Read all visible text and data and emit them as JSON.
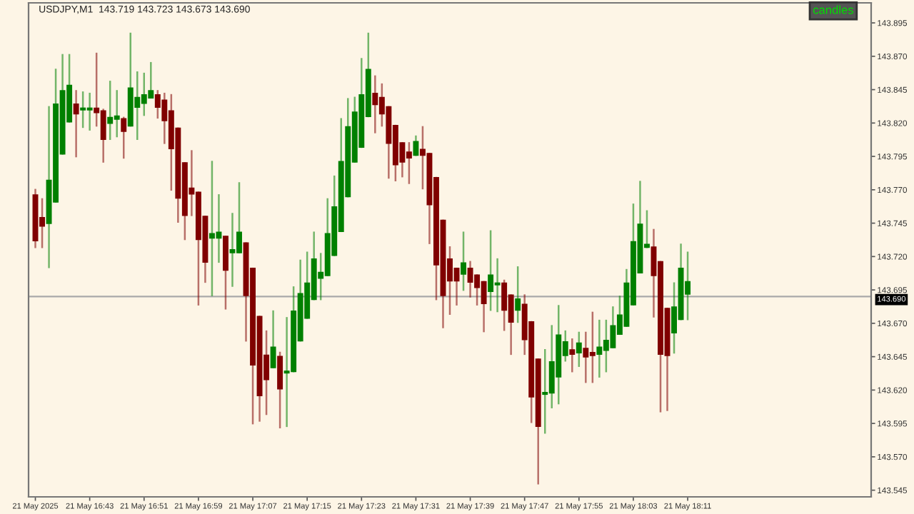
{
  "chart_data": {
    "type": "candlestick",
    "title": "USDJPY,M1  143.719 143.723 143.673 143.690",
    "x": [
      "2025-05-21T16:35",
      "2025-05-21T16:36",
      "2025-05-21T16:37",
      "2025-05-21T16:38",
      "2025-05-21T16:39",
      "2025-05-21T16:40",
      "2025-05-21T16:41",
      "2025-05-21T16:42",
      "2025-05-21T16:43",
      "2025-05-21T16:44",
      "2025-05-21T16:45",
      "2025-05-21T16:46",
      "2025-05-21T16:47",
      "2025-05-21T16:48",
      "2025-05-21T16:49",
      "2025-05-21T16:50",
      "2025-05-21T16:51",
      "2025-05-21T16:52",
      "2025-05-21T16:53",
      "2025-05-21T16:54",
      "2025-05-21T16:55",
      "2025-05-21T16:56",
      "2025-05-21T16:57",
      "2025-05-21T16:58",
      "2025-05-21T16:59",
      "2025-05-21T17:00",
      "2025-05-21T17:01",
      "2025-05-21T17:02",
      "2025-05-21T17:03",
      "2025-05-21T17:04",
      "2025-05-21T17:05",
      "2025-05-21T17:06",
      "2025-05-21T17:07",
      "2025-05-21T17:08",
      "2025-05-21T17:09",
      "2025-05-21T17:10",
      "2025-05-21T17:11",
      "2025-05-21T17:12",
      "2025-05-21T17:13",
      "2025-05-21T17:14",
      "2025-05-21T17:15",
      "2025-05-21T17:16",
      "2025-05-21T17:17",
      "2025-05-21T17:18",
      "2025-05-21T17:19",
      "2025-05-21T17:20",
      "2025-05-21T17:21",
      "2025-05-21T17:22",
      "2025-05-21T17:23",
      "2025-05-21T17:24",
      "2025-05-21T17:25",
      "2025-05-21T17:26",
      "2025-05-21T17:27",
      "2025-05-21T17:28",
      "2025-05-21T17:29",
      "2025-05-21T17:30",
      "2025-05-21T17:31",
      "2025-05-21T17:32",
      "2025-05-21T17:33",
      "2025-05-21T17:34",
      "2025-05-21T17:35",
      "2025-05-21T17:36",
      "2025-05-21T17:37",
      "2025-05-21T17:38",
      "2025-05-21T17:39",
      "2025-05-21T17:40",
      "2025-05-21T17:41",
      "2025-05-21T17:42",
      "2025-05-21T17:43",
      "2025-05-21T17:44",
      "2025-05-21T17:45",
      "2025-05-21T17:46",
      "2025-05-21T17:47",
      "2025-05-21T17:48",
      "2025-05-21T17:49",
      "2025-05-21T17:50",
      "2025-05-21T17:51",
      "2025-05-21T17:52",
      "2025-05-21T17:53",
      "2025-05-21T17:54",
      "2025-05-21T17:55",
      "2025-05-21T17:56",
      "2025-05-21T17:57",
      "2025-05-21T17:58",
      "2025-05-21T17:59",
      "2025-05-21T18:00",
      "2025-05-21T18:01",
      "2025-05-21T18:02",
      "2025-05-21T18:03",
      "2025-05-21T18:04",
      "2025-05-21T18:05",
      "2025-05-21T18:06",
      "2025-05-21T18:07",
      "2025-05-21T18:08",
      "2025-05-21T18:09",
      "2025-05-21T18:10",
      "2025-05-21T18:11"
    ],
    "ohlc": [
      [
        143.766,
        143.77,
        143.727,
        143.732
      ],
      [
        143.749,
        143.763,
        143.727,
        143.743
      ],
      [
        143.745,
        143.832,
        143.712,
        143.777
      ],
      [
        143.761,
        143.86,
        143.761,
        143.834
      ],
      [
        143.797,
        143.871,
        143.797,
        143.844
      ],
      [
        143.821,
        143.871,
        143.821,
        143.848
      ],
      [
        143.834,
        143.844,
        143.795,
        143.827
      ],
      [
        143.83,
        143.843,
        143.817,
        143.831
      ],
      [
        143.83,
        143.842,
        143.815,
        143.831
      ],
      [
        143.831,
        143.872,
        143.818,
        143.828
      ],
      [
        143.829,
        143.83,
        143.791,
        143.808
      ],
      [
        143.82,
        143.851,
        143.808,
        143.824
      ],
      [
        143.823,
        143.844,
        143.81,
        143.825
      ],
      [
        143.823,
        143.824,
        143.794,
        143.814
      ],
      [
        143.818,
        143.887,
        143.818,
        143.846
      ],
      [
        143.832,
        143.858,
        143.808,
        143.839
      ],
      [
        143.835,
        143.857,
        143.826,
        143.841
      ],
      [
        143.839,
        143.865,
        143.839,
        143.844
      ],
      [
        143.841,
        143.844,
        143.824,
        143.832
      ],
      [
        143.837,
        143.842,
        143.805,
        143.822
      ],
      [
        143.829,
        143.841,
        143.77,
        143.801
      ],
      [
        143.816,
        143.816,
        143.746,
        143.764
      ],
      [
        143.79,
        143.79,
        143.733,
        143.751
      ],
      [
        143.771,
        143.799,
        143.751,
        143.767
      ],
      [
        143.768,
        143.768,
        143.684,
        143.733
      ],
      [
        143.75,
        143.75,
        143.701,
        143.716
      ],
      [
        143.734,
        143.791,
        143.691,
        143.737
      ],
      [
        143.734,
        143.766,
        143.716,
        143.738
      ],
      [
        143.735,
        143.735,
        143.681,
        143.71
      ],
      [
        143.723,
        143.752,
        143.698,
        143.725
      ],
      [
        143.723,
        143.775,
        143.723,
        143.738
      ],
      [
        143.73,
        143.73,
        143.657,
        143.691
      ],
      [
        143.711,
        143.711,
        143.595,
        143.639
      ],
      [
        143.675,
        143.675,
        143.597,
        143.616
      ],
      [
        143.646,
        143.664,
        143.602,
        143.628
      ],
      [
        143.637,
        143.679,
        143.637,
        143.652
      ],
      [
        143.645,
        143.648,
        143.592,
        143.621
      ],
      [
        143.633,
        143.674,
        143.593,
        143.634
      ],
      [
        143.634,
        143.697,
        143.634,
        143.679
      ],
      [
        143.657,
        143.717,
        143.657,
        143.692
      ],
      [
        143.674,
        143.723,
        143.674,
        143.7
      ],
      [
        143.688,
        143.738,
        143.688,
        143.718
      ],
      [
        143.704,
        143.722,
        143.688,
        143.708
      ],
      [
        143.706,
        143.763,
        143.706,
        143.737
      ],
      [
        143.721,
        143.78,
        143.721,
        143.757
      ],
      [
        143.739,
        143.823,
        143.739,
        143.791
      ],
      [
        143.765,
        143.838,
        143.765,
        143.817
      ],
      [
        143.791,
        143.839,
        143.791,
        143.828
      ],
      [
        143.802,
        143.868,
        143.802,
        143.841
      ],
      [
        143.825,
        143.887,
        143.825,
        143.86
      ],
      [
        143.842,
        143.855,
        143.813,
        143.834
      ],
      [
        143.839,
        143.849,
        143.818,
        143.827
      ],
      [
        143.832,
        143.832,
        143.779,
        143.805
      ],
      [
        143.818,
        143.818,
        143.777,
        143.789
      ],
      [
        143.805,
        143.805,
        143.78,
        143.791
      ],
      [
        143.798,
        143.805,
        143.775,
        143.794
      ],
      [
        143.796,
        143.81,
        143.796,
        143.806
      ],
      [
        143.8,
        143.817,
        143.771,
        143.796
      ],
      [
        143.797,
        143.797,
        143.73,
        143.759
      ],
      [
        143.779,
        143.779,
        143.688,
        143.714
      ],
      [
        143.747,
        143.747,
        143.667,
        143.691
      ],
      [
        143.718,
        143.727,
        143.677,
        143.702
      ],
      [
        143.711,
        143.711,
        143.684,
        143.702
      ],
      [
        143.707,
        143.738,
        143.695,
        143.715
      ],
      [
        143.711,
        143.716,
        143.69,
        143.701
      ],
      [
        143.706,
        143.706,
        143.684,
        143.697
      ],
      [
        143.701,
        143.701,
        143.664,
        143.685
      ],
      [
        143.694,
        143.739,
        143.68,
        143.706
      ],
      [
        143.699,
        143.718,
        143.679,
        143.7
      ],
      [
        143.7,
        143.702,
        143.665,
        143.68
      ],
      [
        143.691,
        143.691,
        143.647,
        143.671
      ],
      [
        143.68,
        143.712,
        143.671,
        143.688
      ],
      [
        143.684,
        143.691,
        143.647,
        143.658
      ],
      [
        143.671,
        143.671,
        143.596,
        143.615
      ],
      [
        143.643,
        143.643,
        143.55,
        143.593
      ],
      [
        143.617,
        143.65,
        143.588,
        143.618
      ],
      [
        143.618,
        143.668,
        143.607,
        143.641
      ],
      [
        143.63,
        143.683,
        143.61,
        143.661
      ],
      [
        143.646,
        143.664,
        143.642,
        143.656
      ],
      [
        143.65,
        143.658,
        143.634,
        143.647
      ],
      [
        143.648,
        143.663,
        143.638,
        143.655
      ],
      [
        143.651,
        143.663,
        143.626,
        143.645
      ],
      [
        143.648,
        143.678,
        143.626,
        143.646
      ],
      [
        143.647,
        143.672,
        143.63,
        143.652
      ],
      [
        143.65,
        143.672,
        143.634,
        143.657
      ],
      [
        143.652,
        143.682,
        143.652,
        143.668
      ],
      [
        143.662,
        143.69,
        143.662,
        143.676
      ],
      [
        143.668,
        143.71,
        143.668,
        143.7
      ],
      [
        143.684,
        143.759,
        143.684,
        143.731
      ],
      [
        143.708,
        143.776,
        143.708,
        143.744
      ],
      [
        143.727,
        143.754,
        143.727,
        143.729
      ],
      [
        143.727,
        143.74,
        143.675,
        143.706
      ],
      [
        143.716,
        143.716,
        143.604,
        143.647
      ],
      [
        143.681,
        143.681,
        143.605,
        143.646
      ],
      [
        143.663,
        143.7,
        143.648,
        143.682
      ],
      [
        143.673,
        143.729,
        143.673,
        143.711
      ],
      [
        143.692,
        143.723,
        143.673,
        143.701
      ]
    ],
    "colors": [
      "#800000",
      "#800000",
      "#008000",
      "#008000",
      "#008000",
      "#008000",
      "#800000",
      "#008000",
      "#008000",
      "#800000",
      "#800000",
      "#008000",
      "#008000",
      "#800000",
      "#008000",
      "#008000",
      "#008000",
      "#008000",
      "#800000",
      "#800000",
      "#800000",
      "#800000",
      "#800000",
      "#800000",
      "#800000",
      "#800000",
      "#008000",
      "#008000",
      "#800000",
      "#008000",
      "#008000",
      "#800000",
      "#800000",
      "#800000",
      "#800000",
      "#008000",
      "#800000",
      "#008000",
      "#008000",
      "#008000",
      "#008000",
      "#008000",
      "#008000",
      "#008000",
      "#008000",
      "#008000",
      "#008000",
      "#008000",
      "#008000",
      "#008000",
      "#800000",
      "#800000",
      "#800000",
      "#800000",
      "#800000",
      "#800000",
      "#008000",
      "#800000",
      "#800000",
      "#800000",
      "#800000",
      "#800000",
      "#800000",
      "#008000",
      "#800000",
      "#800000",
      "#800000",
      "#008000",
      "#008000",
      "#800000",
      "#800000",
      "#008000",
      "#800000",
      "#800000",
      "#800000",
      "#008000",
      "#008000",
      "#008000",
      "#008000",
      "#800000",
      "#008000",
      "#800000",
      "#800000",
      "#008000",
      "#008000",
      "#008000",
      "#008000",
      "#008000",
      "#008000",
      "#008000",
      "#008000",
      "#800000",
      "#800000",
      "#800000",
      "#008000",
      "#008000",
      "#008000"
    ],
    "xlim": [
      "2025-05-21T16:34",
      "2025-05-21T18:38"
    ],
    "xticks": [
      {
        "value": "2025-05-21T16:35",
        "label": "21 May 2025"
      },
      {
        "value": "2025-05-21T16:43",
        "label": "21 May 16:43"
      },
      {
        "value": "2025-05-21T16:51",
        "label": "21 May 16:51"
      },
      {
        "value": "2025-05-21T16:59",
        "label": "21 May 16:59"
      },
      {
        "value": "2025-05-21T17:07",
        "label": "21 May 17:07"
      },
      {
        "value": "2025-05-21T17:15",
        "label": "21 May 17:15"
      },
      {
        "value": "2025-05-21T17:23",
        "label": "21 May 17:23"
      },
      {
        "value": "2025-05-21T17:31",
        "label": "21 May 17:31"
      },
      {
        "value": "2025-05-21T17:39",
        "label": "21 May 17:39"
      },
      {
        "value": "2025-05-21T17:47",
        "label": "21 May 17:47"
      },
      {
        "value": "2025-05-21T17:55",
        "label": "21 May 17:55"
      },
      {
        "value": "2025-05-21T18:03",
        "label": "21 May 18:03"
      },
      {
        "value": "2025-05-21T18:11",
        "label": "21 May 18:11"
      }
    ],
    "ylim": [
      143.54,
      143.91
    ],
    "yticks": [
      143.545,
      {
        "value": 143.57,
        "label": "143.570"
      },
      143.595,
      {
        "value": 143.62,
        "label": "143.620"
      },
      143.645,
      {
        "value": 143.67,
        "label": "143.670"
      },
      143.695,
      {
        "value": 143.72,
        "label": "143.720"
      },
      143.745,
      {
        "value": 143.77,
        "label": "143.770"
      },
      143.795,
      {
        "value": 143.82,
        "label": "143.820"
      },
      143.845,
      {
        "value": 143.87,
        "label": "143.870"
      },
      143.895
    ],
    "ref_lines": [
      {
        "axis": "y",
        "value": 143.69,
        "label": "143.690",
        "color": "#a9a9a9"
      }
    ],
    "annotations": [
      "candles"
    ],
    "grid": false,
    "legend": false
  }
}
